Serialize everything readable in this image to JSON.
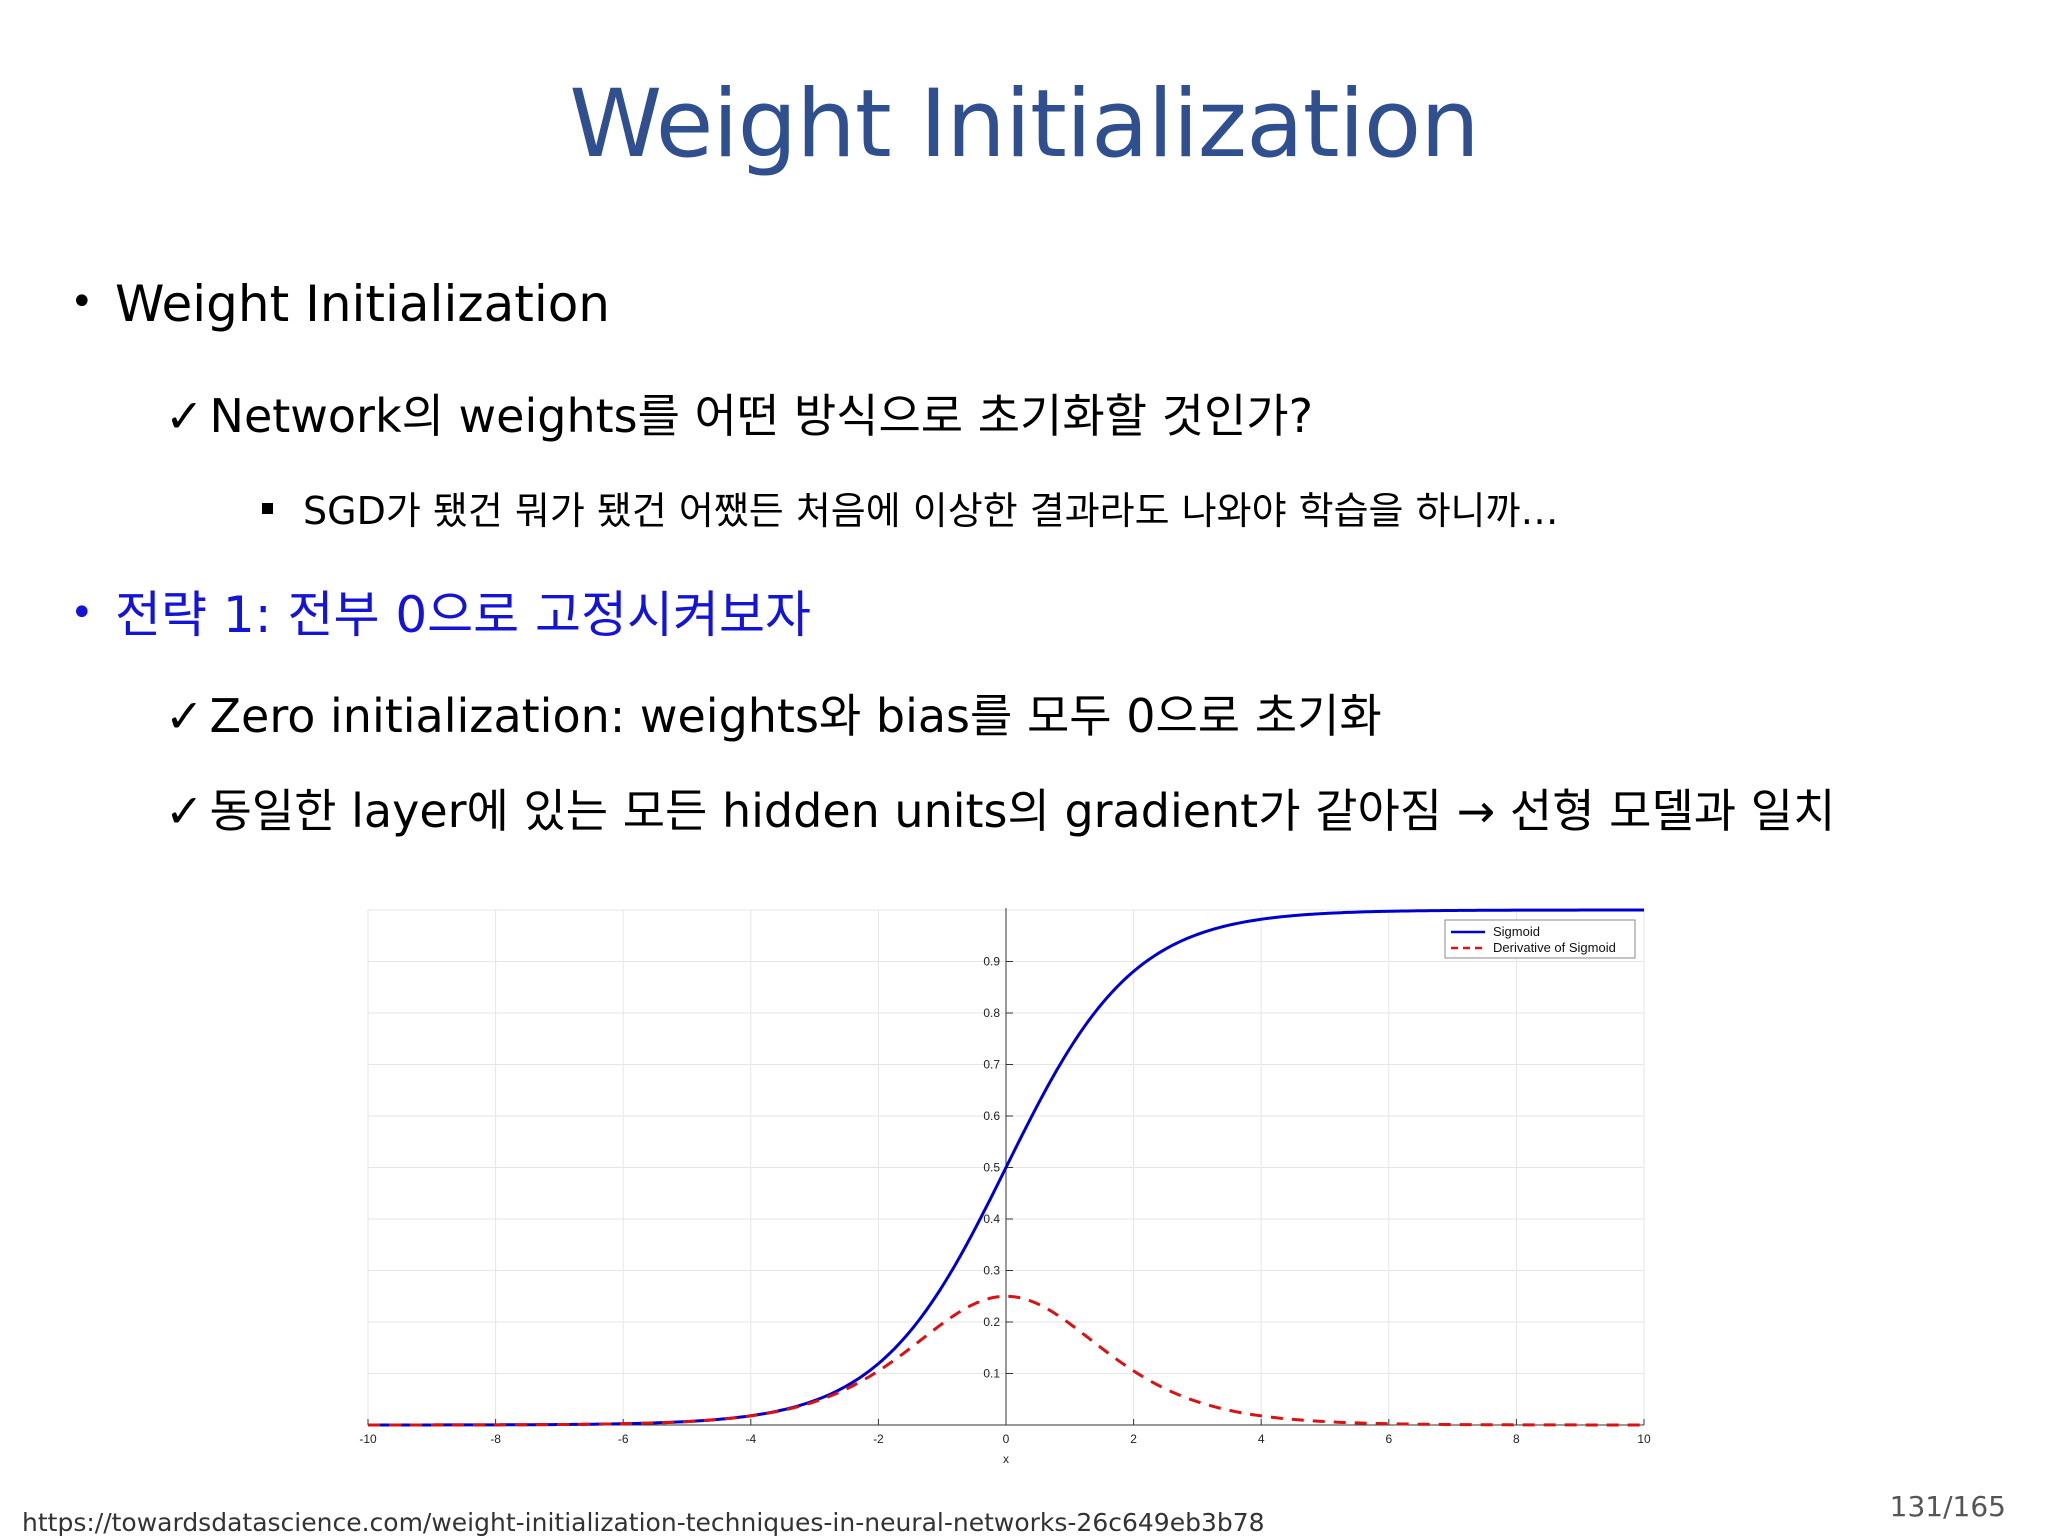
{
  "slide": {
    "title": "Weight Initialization",
    "bullets": [
      {
        "text": "Weight Initialization"
      },
      {
        "text": "Network의 weights를 어떤 방식으로 초기화할 것인가?"
      },
      {
        "text": "SGD가 됐건 뭐가 됐건 어쨌든 처음에 이상한 결과라도 나와야 학습을 하니까…"
      },
      {
        "text": "전략 1: 전부 0으로 고정시켜보자"
      },
      {
        "text": "Zero initialization: weights와 bias를 모두 0으로 초기화"
      },
      {
        "text": "동일한 layer에 있는 모든 hidden units의 gradient가 같아짐 → 선형 모델과 일치"
      }
    ],
    "check_glyph": "✓",
    "bullet_glyph": "•",
    "source_url": "https://towardsdatascience.com/weight-initialization-techniques-in-neural-networks-26c649eb3b78",
    "page_number": "131/165"
  },
  "colors": {
    "title": "#2f4f8f",
    "highlight_bullet": "#1414d8",
    "sigmoid_line": "#0000cc",
    "derivative_line": "#dd1111"
  },
  "chart_data": {
    "type": "line",
    "xlabel": "x",
    "ylabel": "",
    "xlim": [
      -10,
      10
    ],
    "ylim": [
      0,
      1
    ],
    "x_ticks": [
      "-10",
      "-8",
      "-6",
      "-4",
      "-2",
      "0",
      "2",
      "4",
      "6",
      "8",
      "10"
    ],
    "y_ticks": [
      "0.1",
      "0.2",
      "0.3",
      "0.4",
      "0.5",
      "0.6",
      "0.7",
      "0.8",
      "0.9"
    ],
    "grid": true,
    "legend": "top-right",
    "series": [
      {
        "name": "Sigmoid",
        "style": "solid",
        "color": "#0000cc",
        "x": [
          -10,
          -8,
          -6,
          -5,
          -4,
          -3,
          -2,
          -1.5,
          -1,
          -0.5,
          0,
          0.5,
          1,
          1.5,
          2,
          3,
          4,
          5,
          6,
          8,
          10
        ],
        "y": [
          4.54e-05,
          0.000335,
          0.00247,
          0.00669,
          0.018,
          0.0474,
          0.119,
          0.182,
          0.269,
          0.378,
          0.5,
          0.622,
          0.731,
          0.818,
          0.881,
          0.953,
          0.982,
          0.993,
          0.998,
          0.9997,
          0.99995
        ]
      },
      {
        "name": "Derivative of Sigmoid",
        "style": "dashed",
        "color": "#dd1111",
        "x": [
          -10,
          -8,
          -6,
          -5,
          -4,
          -3,
          -2,
          -1.5,
          -1,
          -0.5,
          0,
          0.5,
          1,
          1.5,
          2,
          3,
          4,
          5,
          6,
          8,
          10
        ],
        "y": [
          4.54e-05,
          0.000335,
          0.00247,
          0.00665,
          0.0177,
          0.0452,
          0.105,
          0.149,
          0.197,
          0.235,
          0.25,
          0.235,
          0.197,
          0.149,
          0.105,
          0.0452,
          0.0177,
          0.00665,
          0.00247,
          0.000335,
          4.54e-05
        ]
      }
    ]
  }
}
